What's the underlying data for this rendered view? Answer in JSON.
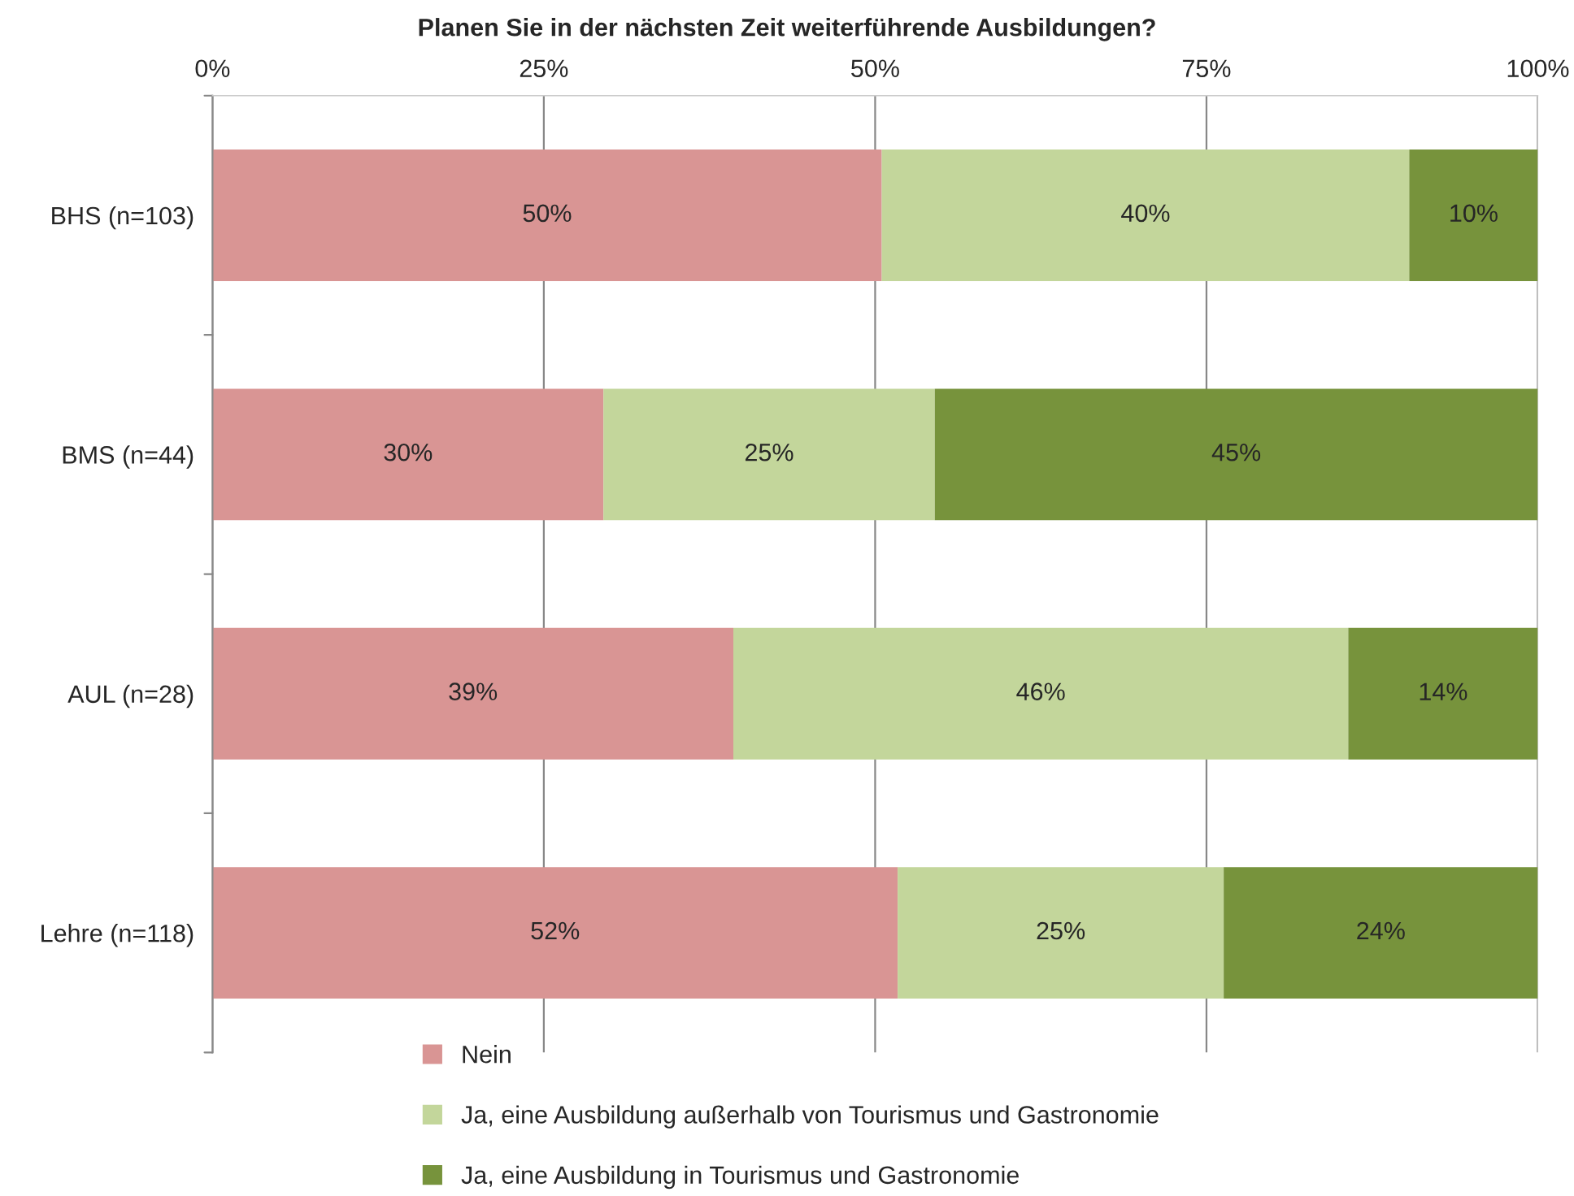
{
  "chart_data": {
    "type": "bar",
    "orientation": "horizontal",
    "stacked": true,
    "title": "Planen Sie in der nächsten Zeit weiterführende Ausbildungen?",
    "categories": [
      "BHS (n=103)",
      "BMS (n=44)",
      "AUL (n=28)",
      "Lehre (n=118)"
    ],
    "series": [
      {
        "name": "Nein",
        "color": "#d99594",
        "values": [
          50.5,
          29.5,
          39.3,
          51.7
        ],
        "value_labels": [
          "50%",
          "30%",
          "39%",
          "52%"
        ]
      },
      {
        "name": "Ja, eine Ausbildung außerhalb von Tourismus und Gastronomie",
        "color": "#c3d69b",
        "values": [
          39.8,
          25.0,
          46.4,
          24.6
        ],
        "value_labels": [
          "40%",
          "25%",
          "46%",
          "25%"
        ]
      },
      {
        "name": "Ja, eine Ausbildung in Tourismus und Gastronomie",
        "color": "#77933c",
        "values": [
          9.7,
          45.5,
          14.3,
          23.7
        ],
        "value_labels": [
          "10%",
          "45%",
          "14%",
          "24%"
        ]
      }
    ],
    "xlim": [
      0,
      100
    ],
    "xticks": [
      {
        "value": 0,
        "label": "0%"
      },
      {
        "value": 25,
        "label": "25%"
      },
      {
        "value": 50,
        "label": "50%"
      },
      {
        "value": 75,
        "label": "75%"
      },
      {
        "value": 100,
        "label": "100%"
      }
    ],
    "grid": "x",
    "legend": "bottom"
  }
}
